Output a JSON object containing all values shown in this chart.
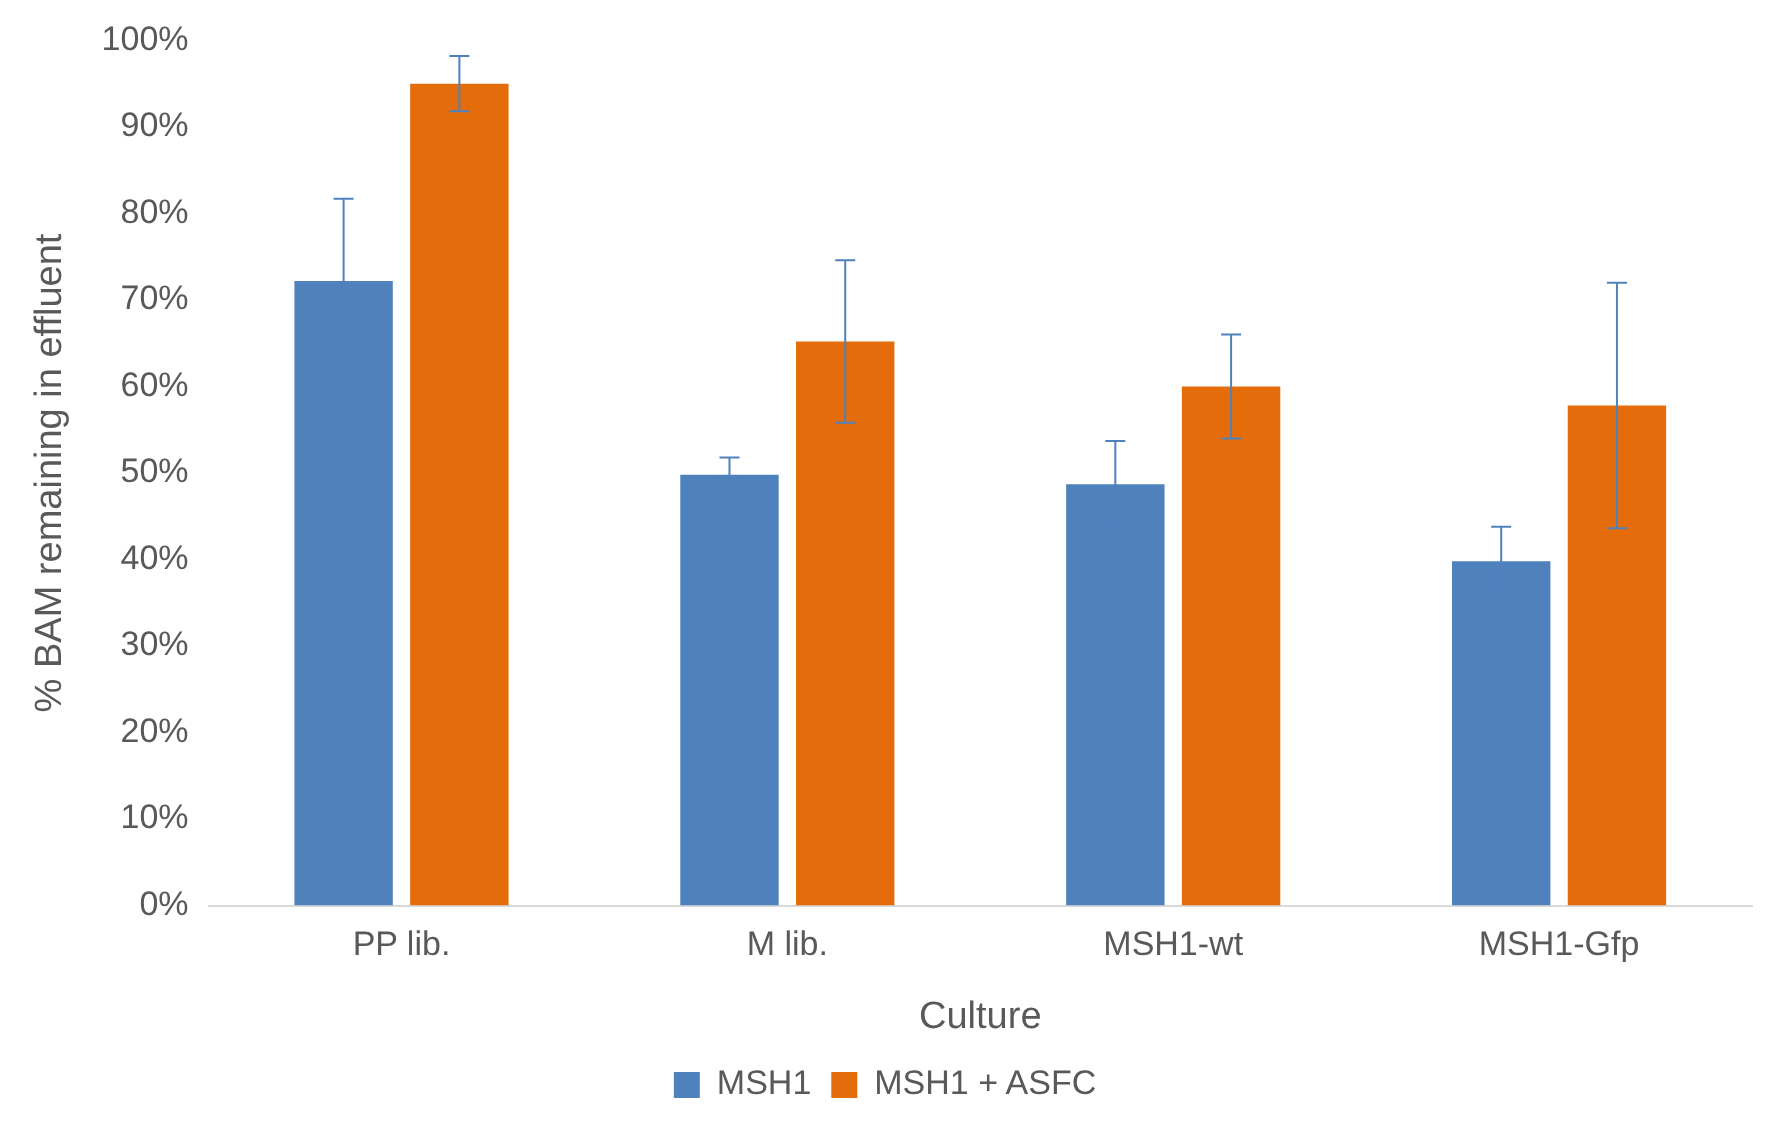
{
  "chart_data": {
    "type": "bar",
    "xlabel": "Culture",
    "ylabel": "% BAM remaining in effluent",
    "categories": [
      "PP lib.",
      "M lib.",
      "MSH1-wt",
      "MSH1-Gfp"
    ],
    "series": [
      {
        "name": "MSH1",
        "color": "#4f81bd",
        "values": [
          72.2,
          49.8,
          48.7,
          39.8
        ],
        "errors": [
          9.5,
          2,
          5,
          4
        ]
      },
      {
        "name": "MSH1 + ASFC",
        "color": "#e46c0a",
        "values": [
          95,
          65.2,
          60,
          57.8
        ],
        "errors": [
          3.2,
          9.4,
          6,
          14.2
        ]
      }
    ],
    "ylim": [
      0,
      100
    ],
    "yticks": [
      {
        "value": 0,
        "label": "0%"
      },
      {
        "value": 10,
        "label": "10%"
      },
      {
        "value": 20,
        "label": "20%"
      },
      {
        "value": 30,
        "label": "30%"
      },
      {
        "value": 40,
        "label": "40%"
      },
      {
        "value": 50,
        "label": "50%"
      },
      {
        "value": 60,
        "label": "60%"
      },
      {
        "value": 70,
        "label": "70%"
      },
      {
        "value": 80,
        "label": "80%"
      },
      {
        "value": 90,
        "label": "90%"
      },
      {
        "value": 100,
        "label": "100%"
      }
    ],
    "grid": false,
    "legend": "bottom"
  }
}
